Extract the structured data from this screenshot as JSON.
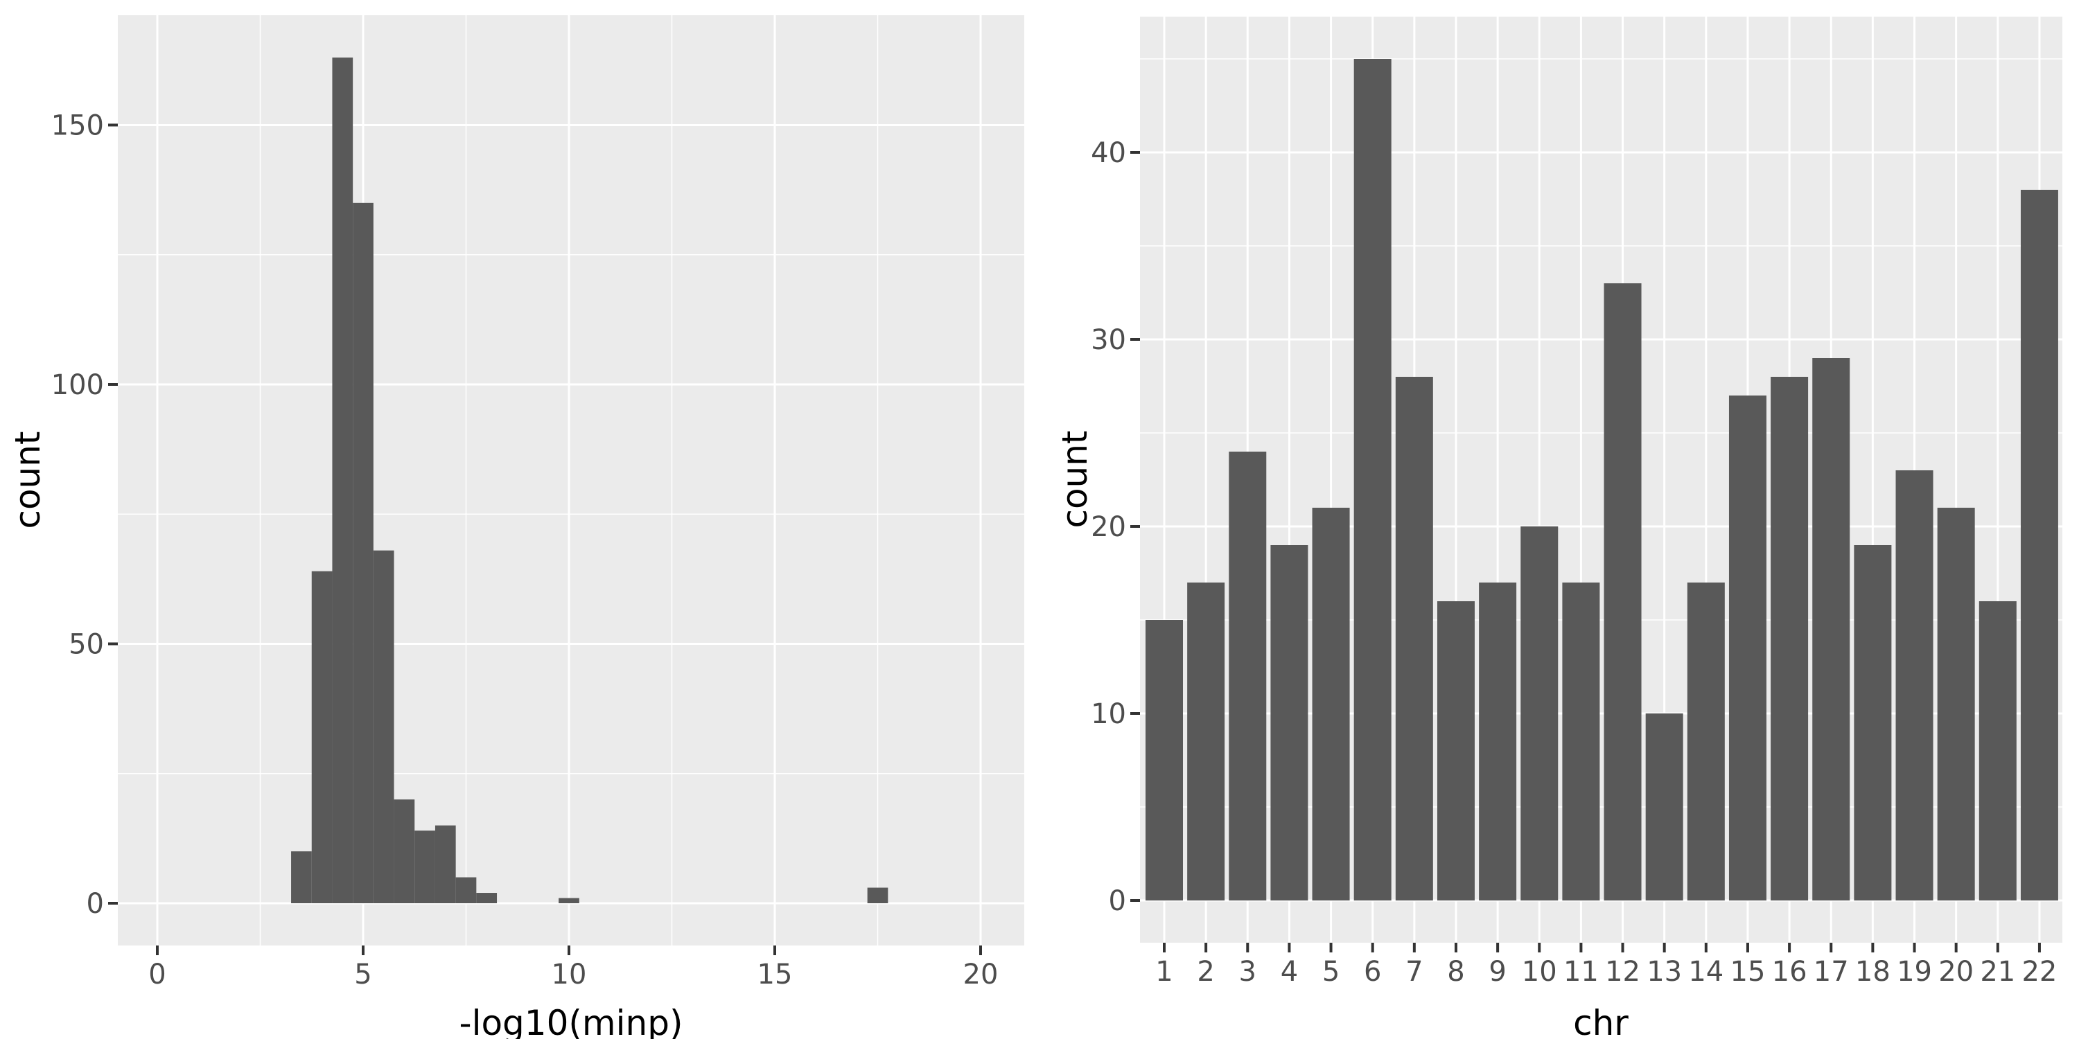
{
  "figure": {
    "background": "#FFFFFF",
    "panel_background": "#EBEBEB",
    "grid_color": "#FFFFFF",
    "bar_color": "#595959",
    "tick_mark_color": "#333333",
    "tick_label_color": "#4D4D4D",
    "axis_title_color": "#000000"
  },
  "chart_data": [
    {
      "type": "bar",
      "subtype": "histogram",
      "title": "",
      "xlabel": "-log10(minp)",
      "ylabel": "count",
      "legend": "none",
      "grid": "on",
      "xlim": [
        -0.96,
        21.06
      ],
      "ylim": [
        -8.2,
        171.2
      ],
      "x_tick_values": [
        0,
        5,
        10,
        15,
        20
      ],
      "x_tick_labels": [
        "0",
        "5",
        "10",
        "15",
        "20"
      ],
      "x_minor_values": [
        2.5,
        7.5,
        12.5,
        17.5
      ],
      "y_tick_values": [
        0,
        50,
        100,
        150
      ],
      "y_tick_labels": [
        "0",
        "50",
        "100",
        "150"
      ],
      "y_minor_values": [
        25,
        75,
        125
      ],
      "binwidth": 0.5,
      "bins": [
        {
          "x0": 3.25,
          "x1": 3.75,
          "count": 10
        },
        {
          "x0": 3.75,
          "x1": 4.25,
          "count": 64
        },
        {
          "x0": 4.25,
          "x1": 4.75,
          "count": 163
        },
        {
          "x0": 4.75,
          "x1": 5.25,
          "count": 135
        },
        {
          "x0": 5.25,
          "x1": 5.75,
          "count": 68
        },
        {
          "x0": 5.75,
          "x1": 6.25,
          "count": 20
        },
        {
          "x0": 6.25,
          "x1": 6.75,
          "count": 14
        },
        {
          "x0": 6.75,
          "x1": 7.25,
          "count": 15
        },
        {
          "x0": 7.25,
          "x1": 7.75,
          "count": 5
        },
        {
          "x0": 7.75,
          "x1": 8.25,
          "count": 2
        },
        {
          "x0": 9.75,
          "x1": 10.25,
          "count": 1
        },
        {
          "x0": 17.25,
          "x1": 17.75,
          "count": 3
        }
      ]
    },
    {
      "type": "bar",
      "title": "",
      "xlabel": "chr",
      "ylabel": "count",
      "legend": "none",
      "grid": "on",
      "ylim": [
        -2.25,
        47.25
      ],
      "categories": [
        "1",
        "2",
        "3",
        "4",
        "5",
        "6",
        "7",
        "8",
        "9",
        "10",
        "11",
        "12",
        "13",
        "14",
        "15",
        "16",
        "17",
        "18",
        "19",
        "20",
        "21",
        "22"
      ],
      "values": [
        15,
        17,
        24,
        19,
        21,
        45,
        28,
        16,
        17,
        20,
        17,
        33,
        10,
        17,
        27,
        28,
        29,
        19,
        23,
        21,
        16,
        38
      ],
      "y_tick_values": [
        0,
        10,
        20,
        30,
        40
      ],
      "y_tick_labels": [
        "0",
        "10",
        "20",
        "30",
        "40"
      ],
      "y_minor_values": [
        5,
        15,
        25,
        35,
        45
      ],
      "bar_width_fraction": 0.9
    }
  ]
}
